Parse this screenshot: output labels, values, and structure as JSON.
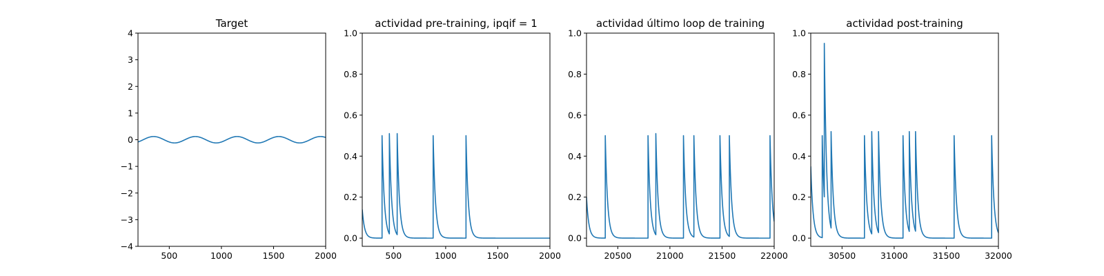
{
  "chart_data": [
    {
      "type": "line",
      "title": "Target",
      "xlim": [
        200,
        2000
      ],
      "ylim": [
        -4,
        4
      ],
      "xticks": [
        500,
        1000,
        1500,
        2000
      ],
      "yticks": [
        -4,
        -3,
        -2,
        -1,
        0,
        1,
        2,
        3,
        4
      ],
      "series": [
        {
          "kind": "sine",
          "color": "#1f77b4",
          "amplitude": 0.12,
          "period": 400,
          "peak_at": 350,
          "x_start": 200,
          "x_end": 2000
        }
      ]
    },
    {
      "type": "line",
      "title": "actividad pre-training, ipqif = 1",
      "xlim": [
        200,
        2000
      ],
      "ylim": [
        -0.04,
        1.0
      ],
      "xticks": [
        500,
        1000,
        1500,
        2000
      ],
      "yticks": [
        0.0,
        0.2,
        0.4,
        0.6,
        0.8,
        1.0
      ],
      "series": [
        {
          "kind": "spikes",
          "color": "#1f77b4",
          "initial_value": 0.14,
          "decay": 22,
          "spikes": [
            {
              "x": 390,
              "height": 0.5
            },
            {
              "x": 460,
              "height": 0.51
            },
            {
              "x": 535,
              "height": 0.51
            },
            {
              "x": 880,
              "height": 0.5
            },
            {
              "x": 1195,
              "height": 0.5
            }
          ]
        }
      ]
    },
    {
      "type": "line",
      "title": "actividad último loop de training",
      "xlim": [
        20200,
        22000
      ],
      "ylim": [
        -0.04,
        1.0
      ],
      "xticks": [
        20500,
        21000,
        21500,
        22000
      ],
      "yticks": [
        0.0,
        0.2,
        0.4,
        0.6,
        0.8,
        1.0
      ],
      "series": [
        {
          "kind": "spikes",
          "color": "#1f77b4",
          "initial_value": 0.2,
          "decay": 22,
          "spikes": [
            {
              "x": 20380,
              "height": 0.5
            },
            {
              "x": 20790,
              "height": 0.5
            },
            {
              "x": 20865,
              "height": 0.51
            },
            {
              "x": 21130,
              "height": 0.5
            },
            {
              "x": 21230,
              "height": 0.5
            },
            {
              "x": 21480,
              "height": 0.5
            },
            {
              "x": 21570,
              "height": 0.5
            },
            {
              "x": 21960,
              "height": 0.5
            }
          ]
        }
      ]
    },
    {
      "type": "line",
      "title": "actividad post-training",
      "xlim": [
        30200,
        32000
      ],
      "ylim": [
        -0.04,
        1.0
      ],
      "xticks": [
        30500,
        31000,
        31500,
        32000
      ],
      "yticks": [
        0.0,
        0.2,
        0.4,
        0.6,
        0.8,
        1.0
      ],
      "series": [
        {
          "kind": "spikes",
          "color": "#1f77b4",
          "initial_value": 0.35,
          "decay": 22,
          "spikes": [
            {
              "x": 30310,
              "height": 0.5
            },
            {
              "x": 30330,
              "height": 0.95
            },
            {
              "x": 30395,
              "height": 0.52
            },
            {
              "x": 30715,
              "height": 0.5
            },
            {
              "x": 30785,
              "height": 0.52
            },
            {
              "x": 30850,
              "height": 0.52
            },
            {
              "x": 31085,
              "height": 0.5
            },
            {
              "x": 31145,
              "height": 0.52
            },
            {
              "x": 31205,
              "height": 0.52
            },
            {
              "x": 31575,
              "height": 0.5
            },
            {
              "x": 31935,
              "height": 0.5
            }
          ]
        }
      ]
    }
  ]
}
